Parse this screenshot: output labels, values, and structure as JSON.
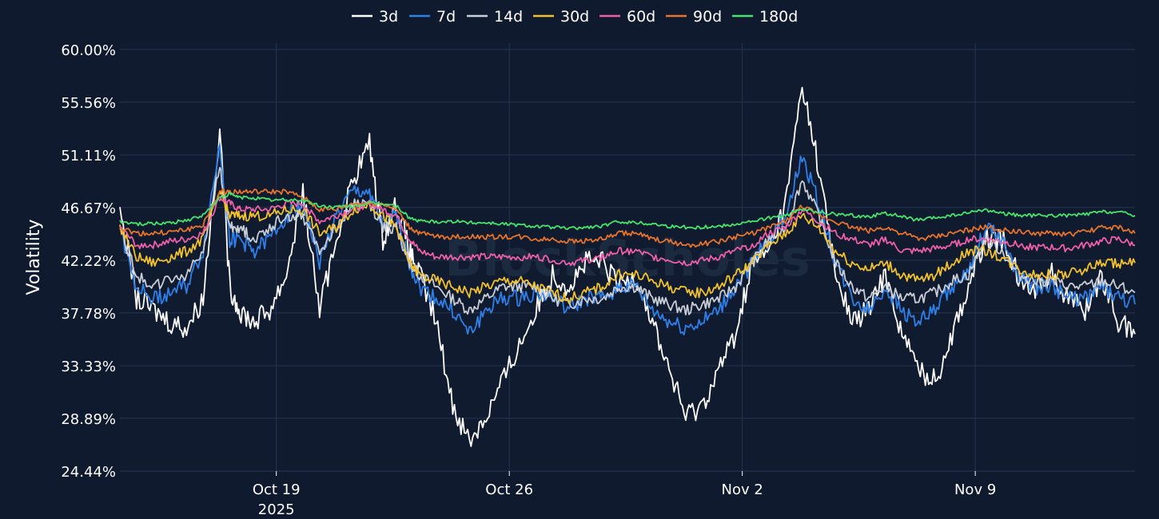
{
  "chart_data": {
    "type": "line",
    "title": "",
    "xlabel": "",
    "ylabel": "Volatility",
    "watermark": "BlockScholes",
    "ylim": [
      24.44,
      60.0
    ],
    "xlim_days": [
      0,
      30.5
    ],
    "ytick_labels": [
      "60.00%",
      "55.56%",
      "51.11%",
      "46.67%",
      "42.22%",
      "37.78%",
      "33.33%",
      "28.89%",
      "24.44%"
    ],
    "ytick_values": [
      60.0,
      55.56,
      51.11,
      46.67,
      42.22,
      37.78,
      33.33,
      28.89,
      24.44
    ],
    "xticks": [
      {
        "day": 4.7,
        "label": "Oct 19",
        "sublabel": "2025"
      },
      {
        "day": 11.7,
        "label": "Oct 26",
        "sublabel": ""
      },
      {
        "day": 18.7,
        "label": "Nov 2",
        "sublabel": ""
      },
      {
        "day": 25.7,
        "label": "Nov 9",
        "sublabel": ""
      }
    ],
    "legend_position": "top-center",
    "grid": true,
    "series": [
      {
        "name": "3d",
        "color": "#ffffff",
        "x": [
          0,
          0.5,
          1,
          1.5,
          2,
          2.5,
          3,
          3.3,
          3.6,
          4,
          4.5,
          5,
          5.5,
          6,
          6.5,
          7,
          7.5,
          7.9,
          8.3,
          8.7,
          9,
          9.5,
          10,
          10.5,
          11,
          11.5,
          12,
          12.5,
          13,
          13.5,
          14,
          14.5,
          15,
          15.5,
          16,
          16.5,
          17,
          17.5,
          18,
          18.5,
          19,
          19.5,
          20,
          20.5,
          21,
          21.5,
          22,
          22.5,
          23,
          23.5,
          24,
          24.5,
          25,
          25.5,
          26,
          26.5,
          27,
          27.5,
          28,
          28.5,
          29,
          29.5,
          30,
          30.5
        ],
        "values": [
          47,
          39,
          38,
          37,
          36.5,
          39,
          53.5,
          40,
          38,
          37,
          38,
          41,
          48,
          38,
          44,
          49,
          52,
          44,
          47,
          43,
          41,
          37,
          30,
          27,
          29,
          32,
          35,
          38,
          41,
          40,
          42,
          42,
          40,
          41,
          37,
          33,
          29,
          30,
          33,
          36,
          42,
          43,
          47,
          57,
          50,
          41,
          37,
          38,
          41,
          36,
          33,
          32,
          36,
          40,
          44,
          44,
          41,
          40,
          41,
          39,
          38,
          41,
          37,
          36
        ]
      },
      {
        "name": "7d",
        "color": "#2f7fe8",
        "x": [
          0,
          0.5,
          1,
          1.5,
          2,
          2.5,
          3,
          3.3,
          3.6,
          4,
          4.5,
          5,
          5.5,
          6,
          6.5,
          7,
          7.5,
          7.9,
          8.3,
          8.7,
          9,
          9.5,
          10,
          10.5,
          11,
          11.5,
          12,
          12.5,
          13,
          13.5,
          14,
          14.5,
          15,
          15.5,
          16,
          16.5,
          17,
          17.5,
          18,
          18.5,
          19,
          19.5,
          20,
          20.5,
          21,
          21.5,
          22,
          22.5,
          23,
          23.5,
          24,
          24.5,
          25,
          25.5,
          26,
          26.5,
          27,
          27.5,
          28,
          28.5,
          29,
          29.5,
          30,
          30.5
        ],
        "values": [
          45,
          40,
          39,
          39.5,
          40,
          43,
          52,
          44,
          44,
          43,
          44,
          46,
          47,
          42,
          46,
          48,
          48,
          45,
          46,
          42,
          40,
          39,
          38,
          36,
          38,
          39,
          39,
          39.5,
          39,
          38,
          39,
          39,
          40,
          40,
          38,
          37,
          36.5,
          37,
          38,
          40,
          42,
          44,
          46,
          51,
          47,
          42,
          39,
          38,
          40,
          38,
          37,
          38,
          40,
          41,
          45,
          44,
          41,
          40,
          40,
          39,
          39,
          40,
          39,
          38.5
        ]
      },
      {
        "name": "14d",
        "color": "#c8cdd6",
        "x": [
          0,
          0.5,
          1,
          1.5,
          2,
          2.5,
          3,
          3.3,
          3.6,
          4,
          4.5,
          5,
          5.5,
          6,
          6.5,
          7,
          7.5,
          7.9,
          8.3,
          8.7,
          9,
          9.5,
          10,
          10.5,
          11,
          11.5,
          12,
          12.5,
          13,
          13.5,
          14,
          14.5,
          15,
          15.5,
          16,
          16.5,
          17,
          17.5,
          18,
          18.5,
          19,
          19.5,
          20,
          20.5,
          21,
          21.5,
          22,
          22.5,
          23,
          23.5,
          24,
          24.5,
          25,
          25.5,
          26,
          26.5,
          27,
          27.5,
          28,
          28.5,
          29,
          29.5,
          30,
          30.5
        ],
        "values": [
          45,
          41,
          40,
          40.5,
          41,
          43,
          50,
          45,
          45,
          44,
          45,
          46,
          46,
          43,
          45,
          47,
          47,
          45,
          45,
          42,
          41,
          40,
          39,
          38,
          39,
          40,
          40,
          40,
          39,
          38.5,
          39,
          39,
          40,
          40,
          39,
          38.5,
          38,
          38.5,
          39,
          40,
          42,
          44,
          45,
          49,
          46,
          42,
          40,
          39,
          40,
          39,
          39,
          39.5,
          40.5,
          41,
          44,
          43,
          41,
          40.5,
          40.5,
          40,
          40,
          40.5,
          40,
          39.5
        ]
      },
      {
        "name": "30d",
        "color": "#f2c12e",
        "x": [
          0,
          0.5,
          1,
          1.5,
          2,
          2.5,
          3,
          3.3,
          3.6,
          4,
          4.5,
          5,
          5.5,
          6,
          6.5,
          7,
          7.5,
          7.9,
          8.3,
          8.7,
          9,
          9.5,
          10,
          10.5,
          11,
          11.5,
          12,
          12.5,
          13,
          13.5,
          14,
          14.5,
          15,
          15.5,
          16,
          16.5,
          17,
          17.5,
          18,
          18.5,
          19,
          19.5,
          20,
          20.5,
          21,
          21.5,
          22,
          22.5,
          23,
          23.5,
          24,
          24.5,
          25,
          25.5,
          26,
          26.5,
          27,
          27.5,
          28,
          28.5,
          29,
          29.5,
          30,
          30.5
        ],
        "values": [
          45,
          42.5,
          42,
          42.5,
          43,
          44,
          48,
          46,
          46,
          46,
          46,
          46.5,
          46.5,
          44.5,
          45,
          46.5,
          47,
          46,
          45,
          42,
          41,
          40.5,
          40,
          39.5,
          40,
          40.5,
          40.5,
          40,
          39.5,
          39,
          39.5,
          40,
          41,
          41,
          40.5,
          40,
          39.5,
          39.5,
          40,
          41,
          42,
          43.5,
          44.5,
          46,
          45,
          43,
          42,
          41.5,
          42,
          41,
          40.5,
          41,
          42,
          43,
          43,
          42.5,
          41.5,
          41,
          41,
          41,
          41.5,
          42,
          42,
          42
        ]
      },
      {
        "name": "60d",
        "color": "#ef5fa7",
        "x": [
          0,
          0.5,
          1,
          1.5,
          2,
          2.5,
          3,
          3.3,
          3.6,
          4,
          4.5,
          5,
          5.5,
          6,
          6.5,
          7,
          7.5,
          7.9,
          8.3,
          8.7,
          9,
          9.5,
          10,
          10.5,
          11,
          11.5,
          12,
          12.5,
          13,
          13.5,
          14,
          14.5,
          15,
          15.5,
          16,
          16.5,
          17,
          17.5,
          18,
          18.5,
          19,
          19.5,
          20,
          20.5,
          21,
          21.5,
          22,
          22.5,
          23,
          23.5,
          24,
          24.5,
          25,
          25.5,
          26,
          26.5,
          27,
          27.5,
          28,
          28.5,
          29,
          29.5,
          30,
          30.5
        ],
        "values": [
          45,
          43.5,
          43.5,
          43.8,
          44,
          44.5,
          47.5,
          47,
          46.5,
          46.5,
          46.5,
          47,
          47,
          45.5,
          46,
          46.5,
          47,
          46.5,
          46,
          44,
          43,
          42.5,
          42.5,
          42.5,
          42.5,
          42.5,
          42.5,
          42.5,
          42.3,
          42,
          42.2,
          42.5,
          43,
          43,
          42.5,
          42.3,
          42,
          42.2,
          42.5,
          43,
          43.5,
          44.5,
          45,
          46.5,
          45.5,
          44.5,
          44,
          43.5,
          44,
          43,
          43,
          43.2,
          43.5,
          44,
          44,
          43.8,
          43.5,
          43.3,
          43.3,
          43.2,
          43.5,
          43.8,
          44,
          43.5
        ]
      },
      {
        "name": "90d",
        "color": "#e8732a",
        "x": [
          0,
          0.5,
          1,
          1.5,
          2,
          2.5,
          3,
          3.3,
          3.6,
          4,
          4.5,
          5,
          5.5,
          6,
          6.5,
          7,
          7.5,
          7.9,
          8.3,
          8.7,
          9,
          9.5,
          10,
          10.5,
          11,
          11.5,
          12,
          12.5,
          13,
          13.5,
          14,
          14.5,
          15,
          15.5,
          16,
          16.5,
          17,
          17.5,
          18,
          18.5,
          19,
          19.5,
          20,
          20.5,
          21,
          21.5,
          22,
          22.5,
          23,
          23.5,
          24,
          24.5,
          25,
          25.5,
          26,
          26.5,
          27,
          27.5,
          28,
          28.5,
          29,
          29.5,
          30,
          30.5
        ],
        "values": [
          45,
          44.5,
          44.5,
          44.6,
          44.8,
          45.2,
          48,
          48,
          48,
          48,
          48,
          48,
          47.5,
          46.5,
          46.5,
          47,
          47,
          47,
          46.5,
          45,
          44.5,
          44.2,
          44.2,
          44.2,
          44.2,
          44.2,
          44.2,
          44,
          44,
          43.8,
          43.9,
          44,
          44.5,
          44.5,
          44,
          43.8,
          43.5,
          43.6,
          43.8,
          44.2,
          44.5,
          45,
          45.5,
          46.8,
          46,
          45.5,
          45,
          44.7,
          45,
          44.5,
          44,
          44.2,
          44.5,
          44.8,
          45,
          44.8,
          44.6,
          44.5,
          44.5,
          44.4,
          44.6,
          45,
          45,
          44.5
        ]
      },
      {
        "name": "180d",
        "color": "#46e46a",
        "x": [
          0,
          0.5,
          1,
          1.5,
          2,
          2.5,
          3,
          3.3,
          3.6,
          4,
          4.5,
          5,
          5.5,
          6,
          6.5,
          7,
          7.5,
          7.9,
          8.3,
          8.7,
          9,
          9.5,
          10,
          10.5,
          11,
          11.5,
          12,
          12.5,
          13,
          13.5,
          14,
          14.5,
          15,
          15.5,
          16,
          16.5,
          17,
          17.5,
          18,
          18.5,
          19,
          19.5,
          20,
          20.5,
          21,
          21.5,
          22,
          22.5,
          23,
          23.5,
          24,
          24.5,
          25,
          25.5,
          26,
          26.5,
          27,
          27.5,
          28,
          28.5,
          29,
          29.5,
          30,
          30.5
        ],
        "values": [
          45.5,
          45.3,
          45.3,
          45.4,
          45.6,
          46,
          47.5,
          47.8,
          47.5,
          47.5,
          47.3,
          47.3,
          47.3,
          46.8,
          46.7,
          46.8,
          47,
          47,
          46.8,
          45.8,
          45.5,
          45.5,
          45.5,
          45.4,
          45.4,
          45.3,
          45.2,
          45.1,
          45,
          44.9,
          45,
          45.1,
          45.5,
          45.4,
          45.3,
          45.1,
          45,
          45,
          45.1,
          45.3,
          45.5,
          45.8,
          46,
          46.5,
          46.3,
          46.1,
          46,
          45.9,
          46.2,
          45.9,
          45.6,
          45.8,
          46,
          46.2,
          46.5,
          46.2,
          46,
          46,
          46,
          46,
          46.1,
          46.3,
          46.3,
          46
        ]
      }
    ]
  }
}
